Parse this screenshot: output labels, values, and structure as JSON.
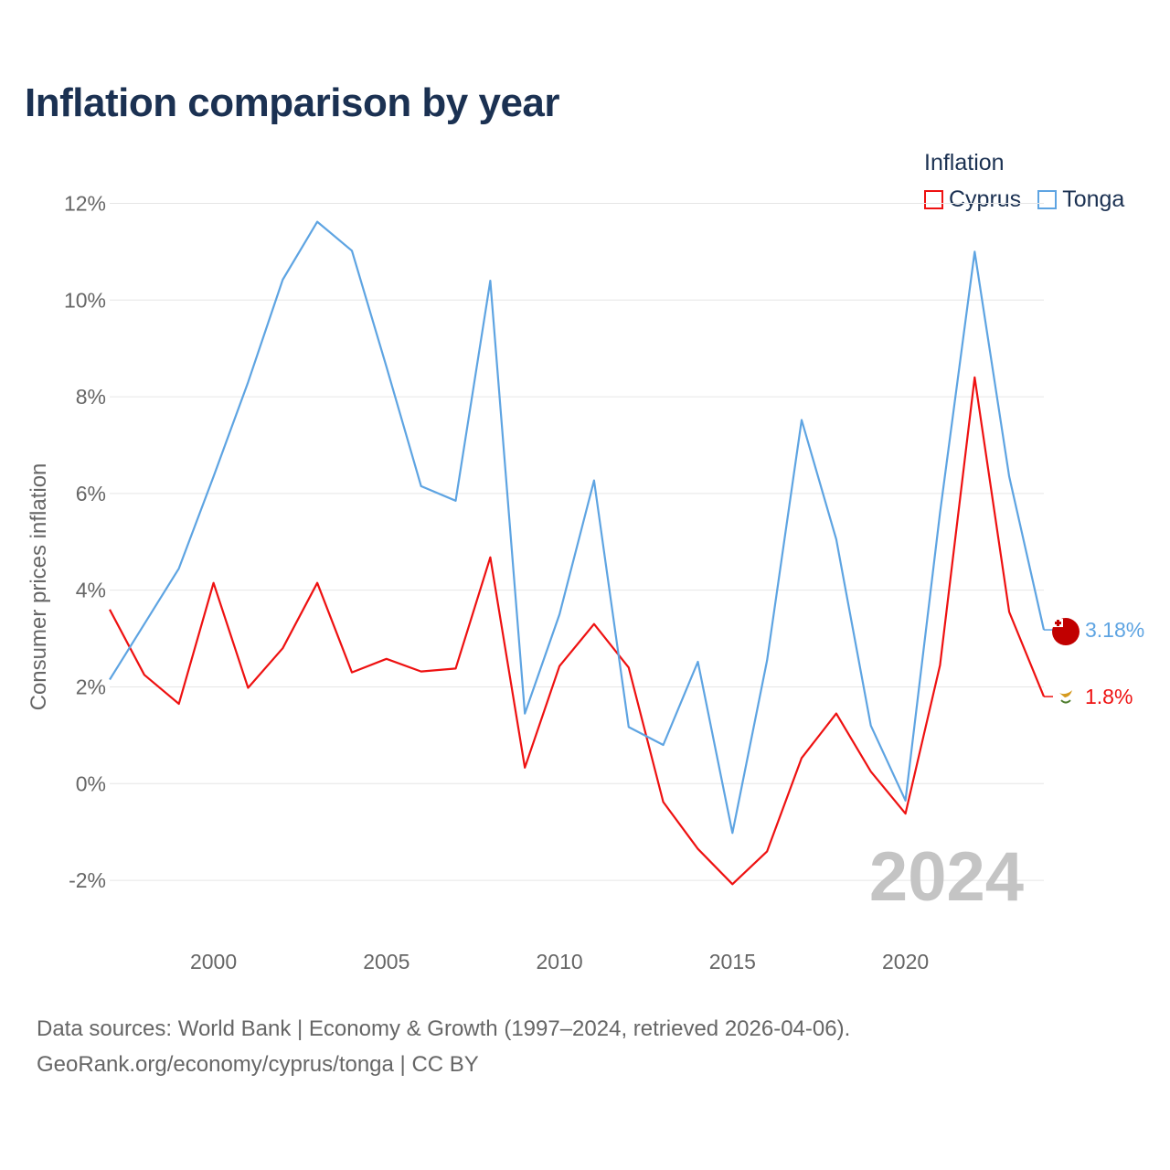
{
  "title": "Inflation comparison by year",
  "legend": {
    "title": "Inflation",
    "items": [
      {
        "label": "Cyprus",
        "color": "#ee1111"
      },
      {
        "label": "Tonga",
        "color": "#5ea4e2"
      }
    ]
  },
  "source": {
    "line1": "Data sources: World Bank | Economy & Growth (1997–2024, retrieved 2026-04-06).",
    "line2": "GeoRank.org/economy/cyprus/tonga | CC BY"
  },
  "chart_data": {
    "type": "line",
    "title": "Inflation comparison by year",
    "xlabel": "",
    "ylabel": "Consumer prices inflation",
    "x": [
      1997,
      1998,
      1999,
      2000,
      2001,
      2002,
      2003,
      2004,
      2005,
      2006,
      2007,
      2008,
      2009,
      2010,
      2011,
      2012,
      2013,
      2014,
      2015,
      2016,
      2017,
      2018,
      2019,
      2020,
      2021,
      2022,
      2023,
      2024
    ],
    "xlim": [
      1997,
      2024
    ],
    "ylim": [
      -3,
      12.5
    ],
    "x_ticks": [
      2000,
      2005,
      2010,
      2015,
      2020
    ],
    "x_tick_labels": [
      "2000",
      "2005",
      "2010",
      "2015",
      "2020"
    ],
    "y_ticks": [
      -2,
      0,
      2,
      4,
      6,
      8,
      10,
      12
    ],
    "y_tick_labels": [
      "-2%",
      "0%",
      "2%",
      "4%",
      "6%",
      "8%",
      "10%",
      "12%"
    ],
    "grid": true,
    "legend_position": "top-right",
    "watermark": "2024",
    "series": [
      {
        "name": "Cyprus",
        "color": "#ee1111",
        "values": [
          3.6,
          2.25,
          1.65,
          4.15,
          1.98,
          2.8,
          4.15,
          2.3,
          2.58,
          2.32,
          2.38,
          4.68,
          0.33,
          2.43,
          3.3,
          2.4,
          -0.38,
          -1.35,
          -2.08,
          -1.4,
          0.53,
          1.45,
          0.25,
          -0.62,
          2.45,
          8.4,
          3.55,
          1.8
        ],
        "end_label": "1.8%"
      },
      {
        "name": "Tonga",
        "color": "#5ea4e2",
        "values": [
          2.15,
          3.3,
          4.45,
          6.35,
          8.3,
          10.42,
          11.62,
          11.02,
          8.62,
          6.15,
          5.85,
          10.4,
          1.45,
          3.5,
          6.27,
          1.17,
          0.8,
          2.52,
          -1.02,
          2.55,
          7.52,
          5.05,
          1.2,
          -0.35,
          5.6,
          11.0,
          6.35,
          3.18
        ],
        "end_label": "3.18%"
      }
    ]
  }
}
